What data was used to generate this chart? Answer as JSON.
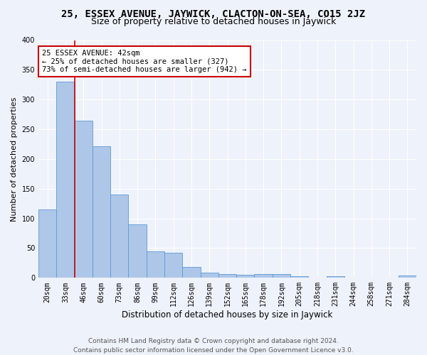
{
  "title1": "25, ESSEX AVENUE, JAYWICK, CLACTON-ON-SEA, CO15 2JZ",
  "title2": "Size of property relative to detached houses in Jaywick",
  "xlabel": "Distribution of detached houses by size in Jaywick",
  "ylabel": "Number of detached properties",
  "categories": [
    "20sqm",
    "33sqm",
    "46sqm",
    "60sqm",
    "73sqm",
    "86sqm",
    "99sqm",
    "112sqm",
    "126sqm",
    "139sqm",
    "152sqm",
    "165sqm",
    "178sqm",
    "192sqm",
    "205sqm",
    "218sqm",
    "231sqm",
    "244sqm",
    "258sqm",
    "271sqm",
    "284sqm"
  ],
  "values": [
    115,
    330,
    265,
    222,
    140,
    90,
    45,
    42,
    18,
    9,
    6,
    5,
    6,
    6,
    3,
    0,
    3,
    0,
    0,
    0,
    4
  ],
  "bar_color": "#aec6e8",
  "bar_edge_color": "#5b9bd5",
  "highlight_bar_idx": 1,
  "highlight_color": "#cc0000",
  "annotation_text": "25 ESSEX AVENUE: 42sqm\n← 25% of detached houses are smaller (327)\n73% of semi-detached houses are larger (942) →",
  "annotation_box_color": "white",
  "annotation_box_edge": "#cc0000",
  "ylim": [
    0,
    400
  ],
  "yticks": [
    0,
    50,
    100,
    150,
    200,
    250,
    300,
    350,
    400
  ],
  "footer": "Contains HM Land Registry data © Crown copyright and database right 2024.\nContains public sector information licensed under the Open Government Licence v3.0.",
  "bg_color": "#eef2fa",
  "grid_color": "#ffffff",
  "title_fontsize": 10,
  "subtitle_fontsize": 9,
  "tick_fontsize": 7,
  "ylabel_fontsize": 8,
  "xlabel_fontsize": 8.5,
  "footer_fontsize": 6.5,
  "annotation_fontsize": 7.5
}
